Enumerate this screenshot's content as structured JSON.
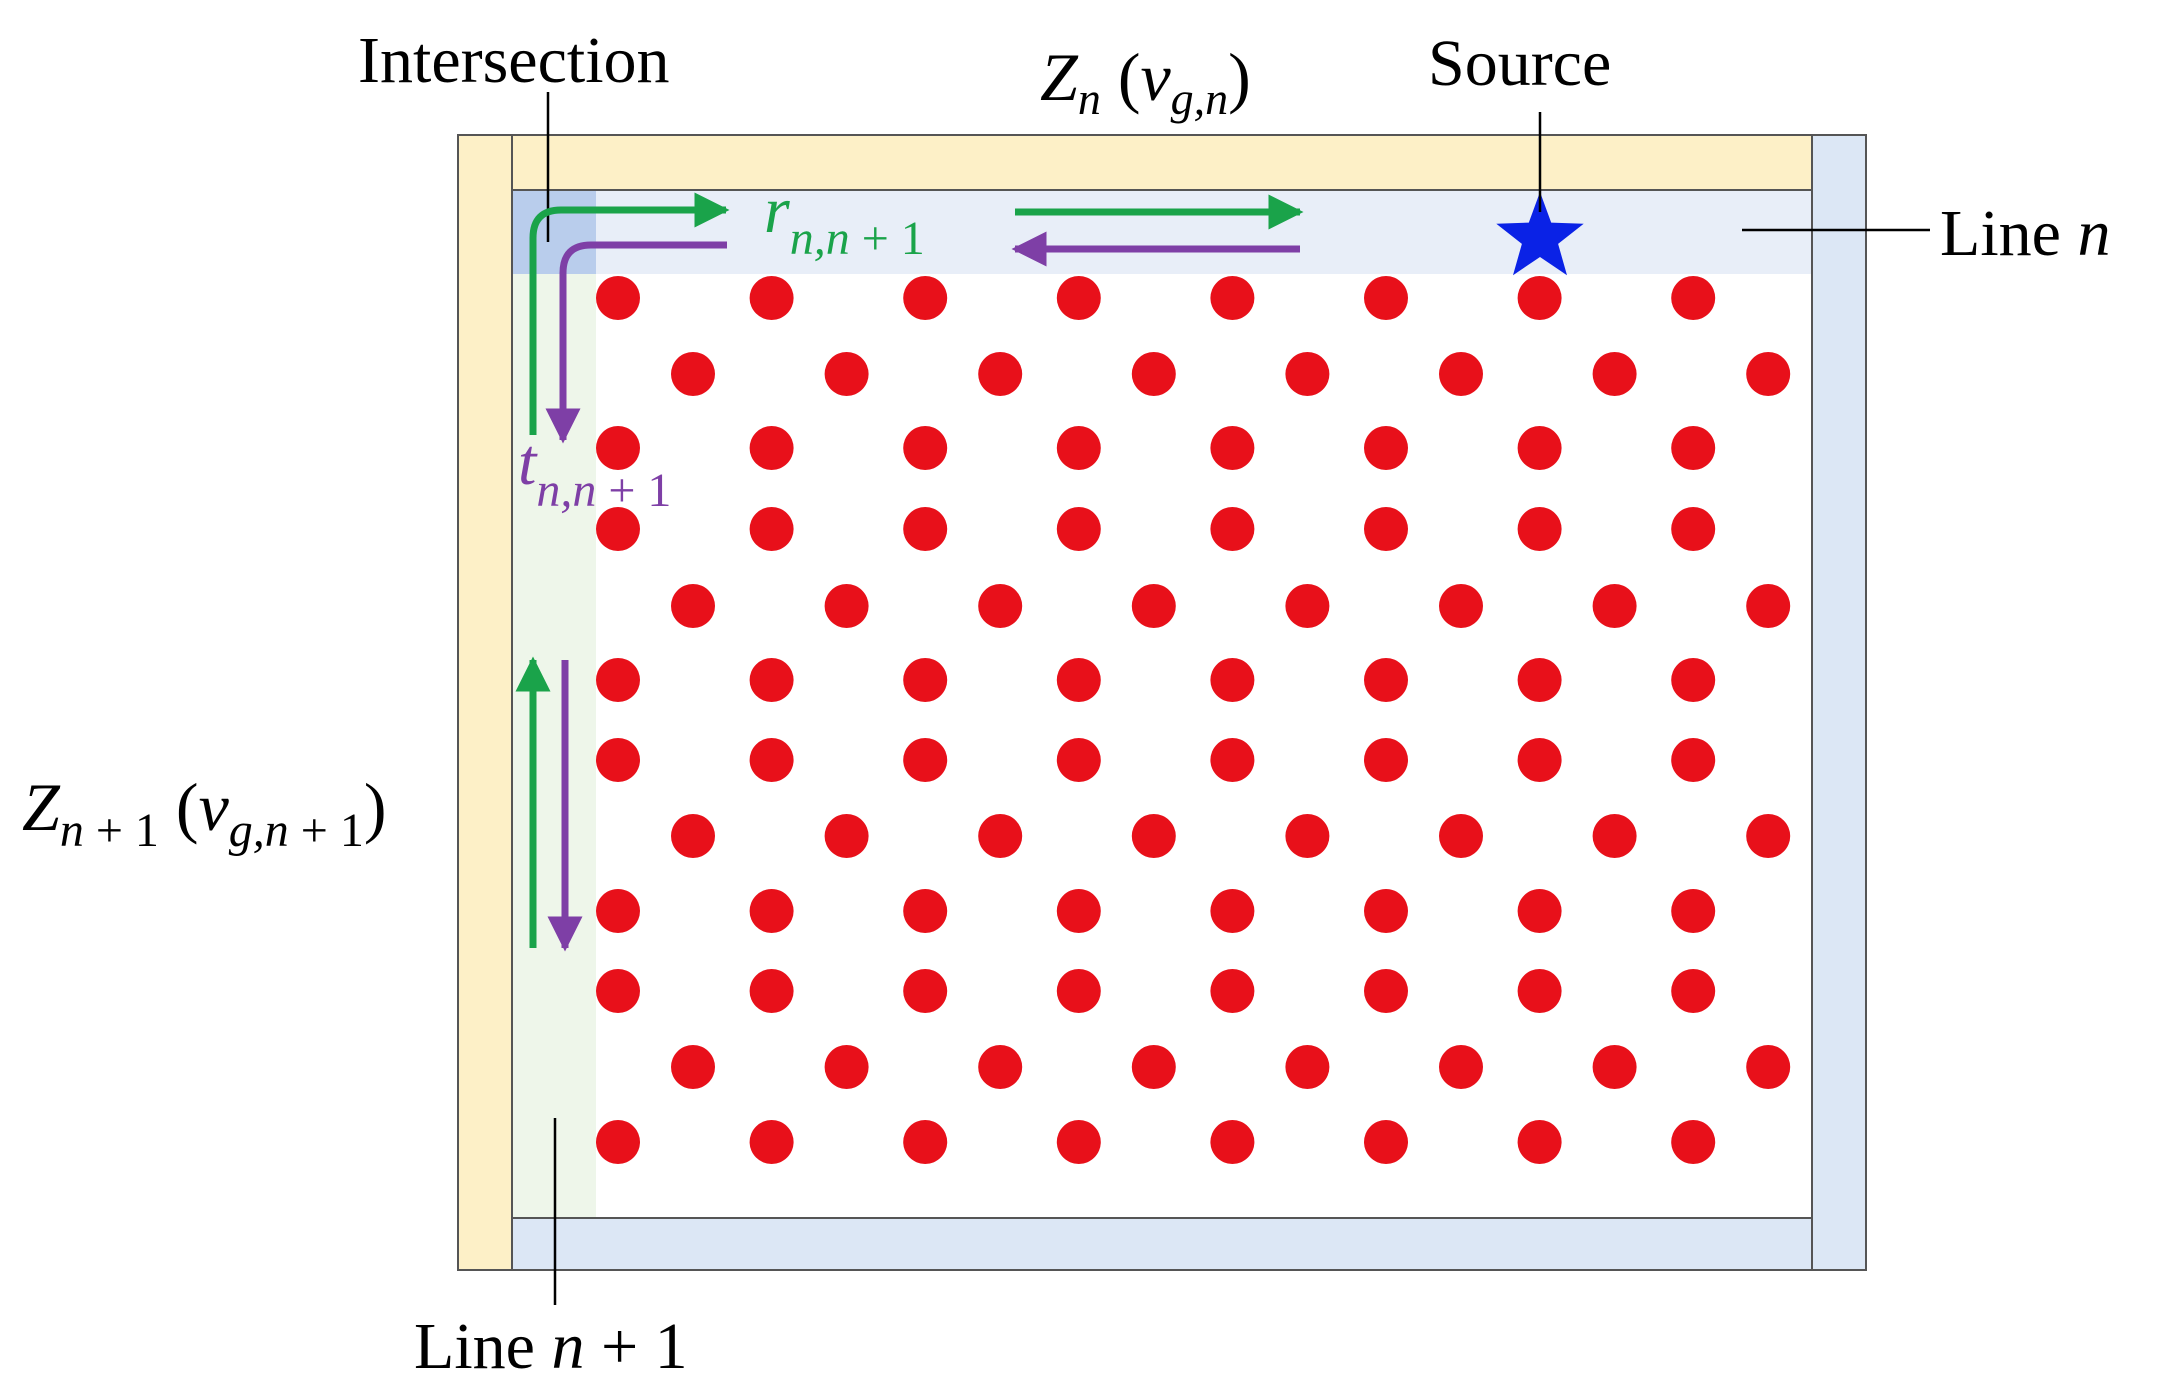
{
  "labels": {
    "intersection": "Intersection",
    "zn": {
      "var": "Z",
      "sub": "n",
      "open": " (",
      "v": "v",
      "vsub": "g,n",
      "close": ")"
    },
    "source": "Source",
    "line_n": {
      "text": "Line ",
      "var": "n"
    },
    "r": {
      "var": "r",
      "sub": "n,n",
      "sub_tail": " + 1"
    },
    "t": {
      "var": "t",
      "sub": "n,n",
      "sub_tail": " + 1"
    },
    "zn1": {
      "var": "Z",
      "sub": "n",
      "sub_tail": " + 1",
      "open": " (",
      "v": "v",
      "vsub": "g,n",
      "vsub_tail": " + 1",
      "close": ")"
    },
    "line_n1": {
      "text": "Line ",
      "var": "n",
      "tail": " + 1"
    }
  },
  "colors": {
    "lattice_dot": "#e8101a",
    "source_star": "#0a22e6",
    "forward_arrow": "#1aa34a",
    "backward_arrow": "#7e3fa6",
    "frame_yellow": "#fdf0c7",
    "frame_blue": "#dce7f5",
    "line_n_band": "#e8eef8",
    "line_n1_band": "#eef6ea",
    "intersection_box": "#a9c2e8"
  },
  "icons": {
    "source": "star-icon",
    "lattice": "circle-icon"
  }
}
